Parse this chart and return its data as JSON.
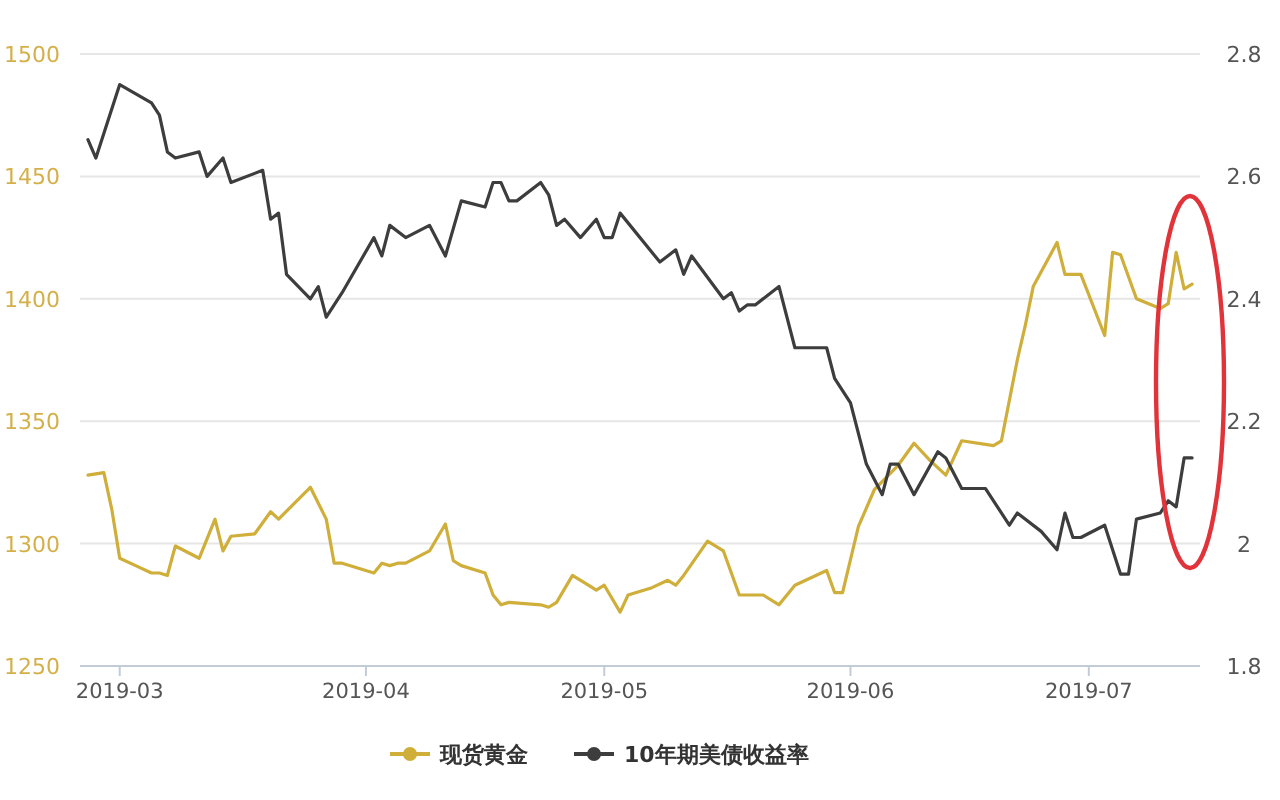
{
  "chart_data": {
    "type": "line",
    "xlim": [
      "2019-02-24",
      "2019-07-15"
    ],
    "xticks": [
      {
        "value": "2019-03-01",
        "label": "2019-03"
      },
      {
        "value": "2019-04-01",
        "label": "2019-04"
      },
      {
        "value": "2019-05-01",
        "label": "2019-05"
      },
      {
        "value": "2019-06-01",
        "label": "2019-06"
      },
      {
        "value": "2019-07-01",
        "label": "2019-07"
      }
    ],
    "ylim": [
      1250,
      1500
    ],
    "yticks": [
      1250,
      1300,
      1350,
      1400,
      1450,
      1500
    ],
    "y2lim": [
      1.8,
      2.8
    ],
    "y2ticks": [
      1.8,
      2,
      2.2,
      2.4,
      2.6,
      2.8
    ],
    "grid": "y",
    "legend": "bottom",
    "series": [
      {
        "name": "现货黄金",
        "color": "#cfae3a",
        "x": [
          "2019-02-25",
          "2019-02-27",
          "2019-02-28",
          "2019-03-01",
          "2019-03-03",
          "2019-03-05",
          "2019-03-06",
          "2019-03-07",
          "2019-03-08",
          "2019-03-11",
          "2019-03-13",
          "2019-03-14",
          "2019-03-15",
          "2019-03-18",
          "2019-03-20",
          "2019-03-21",
          "2019-03-25",
          "2019-03-27",
          "2019-03-28",
          "2019-03-29",
          "2019-04-02",
          "2019-04-03",
          "2019-04-04",
          "2019-04-05",
          "2019-04-06",
          "2019-04-09",
          "2019-04-11",
          "2019-04-12",
          "2019-04-13",
          "2019-04-16",
          "2019-04-17",
          "2019-04-18",
          "2019-04-19",
          "2019-04-23",
          "2019-04-24",
          "2019-04-25",
          "2019-04-27",
          "2019-04-29",
          "2019-04-30",
          "2019-05-01",
          "2019-05-03",
          "2019-05-04",
          "2019-05-07",
          "2019-05-09",
          "2019-05-10",
          "2019-05-11",
          "2019-05-14",
          "2019-05-16",
          "2019-05-18",
          "2019-05-21",
          "2019-05-23",
          "2019-05-25",
          "2019-05-29",
          "2019-05-30",
          "2019-05-31",
          "2019-06-02",
          "2019-06-04",
          "2019-06-07",
          "2019-06-09",
          "2019-06-11",
          "2019-06-13",
          "2019-06-15",
          "2019-06-19",
          "2019-06-20",
          "2019-06-22",
          "2019-06-23",
          "2019-06-24",
          "2019-06-27",
          "2019-06-28",
          "2019-06-30",
          "2019-07-03",
          "2019-07-04",
          "2019-07-05",
          "2019-07-07",
          "2019-07-10",
          "2019-07-11",
          "2019-07-12",
          "2019-07-13",
          "2019-07-14"
        ],
        "values": [
          1328,
          1329,
          1314,
          1294,
          1291,
          1288,
          1288,
          1287,
          1299,
          1294,
          1310,
          1297,
          1303,
          1304,
          1313,
          1310,
          1323,
          1310,
          1292,
          1292,
          1288,
          1292,
          1291,
          1292,
          1292,
          1297,
          1308,
          1293,
          1291,
          1288,
          1279,
          1275,
          1276,
          1275,
          1274,
          1276,
          1287,
          1283,
          1281,
          1283,
          1272,
          1279,
          1282,
          1285,
          1283,
          1287,
          1301,
          1297,
          1279,
          1279,
          1275,
          1283,
          1289,
          1280,
          1280,
          1307,
          1322,
          1332,
          1341,
          1334,
          1328,
          1342,
          1340,
          1342,
          1375,
          1389,
          1405,
          1423,
          1410,
          1410,
          1385,
          1419,
          1418,
          1400,
          1396,
          1398,
          1419,
          1404,
          1406
        ]
      },
      {
        "name": "10年期美债收益率",
        "color": "#3d3d3d",
        "axis": "y2",
        "x": [
          "2019-02-25",
          "2019-02-26",
          "2019-03-01",
          "2019-03-05",
          "2019-03-06",
          "2019-03-07",
          "2019-03-08",
          "2019-03-11",
          "2019-03-12",
          "2019-03-14",
          "2019-03-15",
          "2019-03-19",
          "2019-03-20",
          "2019-03-21",
          "2019-03-22",
          "2019-03-25",
          "2019-03-26",
          "2019-03-27",
          "2019-03-28",
          "2019-03-29",
          "2019-04-02",
          "2019-04-03",
          "2019-04-04",
          "2019-04-06",
          "2019-04-09",
          "2019-04-11",
          "2019-04-13",
          "2019-04-16",
          "2019-04-17",
          "2019-04-18",
          "2019-04-19",
          "2019-04-20",
          "2019-04-23",
          "2019-04-24",
          "2019-04-25",
          "2019-04-26",
          "2019-04-28",
          "2019-04-30",
          "2019-05-01",
          "2019-05-02",
          "2019-05-03",
          "2019-05-08",
          "2019-05-10",
          "2019-05-11",
          "2019-05-12",
          "2019-05-16",
          "2019-05-17",
          "2019-05-18",
          "2019-05-19",
          "2019-05-20",
          "2019-05-23",
          "2019-05-25",
          "2019-05-29",
          "2019-05-30",
          "2019-06-01",
          "2019-06-03",
          "2019-06-05",
          "2019-06-06",
          "2019-06-07",
          "2019-06-09",
          "2019-06-12",
          "2019-06-13",
          "2019-06-15",
          "2019-06-18",
          "2019-06-21",
          "2019-06-22",
          "2019-06-25",
          "2019-06-27",
          "2019-06-28",
          "2019-06-29",
          "2019-06-30",
          "2019-07-03",
          "2019-07-05",
          "2019-07-06",
          "2019-07-07",
          "2019-07-10",
          "2019-07-11",
          "2019-07-12",
          "2019-07-13",
          "2019-07-14"
        ],
        "values": [
          2.66,
          2.63,
          2.75,
          2.72,
          2.7,
          2.64,
          2.63,
          2.64,
          2.6,
          2.63,
          2.59,
          2.61,
          2.53,
          2.54,
          2.44,
          2.4,
          2.42,
          2.37,
          2.39,
          2.41,
          2.5,
          2.47,
          2.52,
          2.5,
          2.52,
          2.47,
          2.56,
          2.55,
          2.59,
          2.59,
          2.56,
          2.56,
          2.59,
          2.57,
          2.52,
          2.53,
          2.5,
          2.53,
          2.5,
          2.5,
          2.54,
          2.46,
          2.48,
          2.44,
          2.47,
          2.4,
          2.41,
          2.38,
          2.39,
          2.39,
          2.42,
          2.32,
          2.32,
          2.27,
          2.23,
          2.13,
          2.08,
          2.13,
          2.13,
          2.08,
          2.15,
          2.14,
          2.09,
          2.09,
          2.03,
          2.05,
          2.02,
          1.99,
          2.05,
          2.01,
          2.01,
          2.03,
          1.95,
          1.95,
          2.04,
          2.05,
          2.07,
          2.06,
          2.14,
          2.14
        ]
      }
    ]
  }
}
